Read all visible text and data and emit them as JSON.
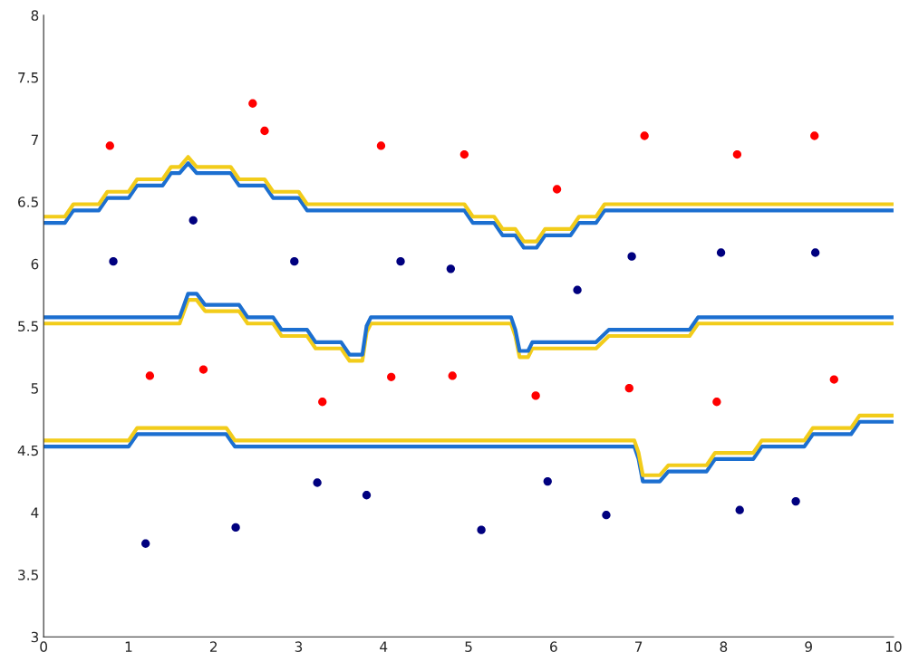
{
  "chart_data": {
    "type": "line",
    "xlim": [
      0,
      10
    ],
    "ylim": [
      3,
      8
    ],
    "xticks": [
      0,
      1,
      2,
      3,
      4,
      5,
      6,
      7,
      8,
      9,
      10
    ],
    "yticks": [
      3,
      3.5,
      4,
      4.5,
      5,
      5.5,
      6,
      6.5,
      7,
      7.5,
      8
    ],
    "grid": false,
    "series": [
      {
        "color": "#1c6fd0",
        "x": [
          0,
          0.25,
          0.35,
          0.65,
          0.75,
          1.0,
          1.1,
          1.4,
          1.5,
          1.6,
          1.7,
          1.8,
          2.2,
          2.3,
          2.6,
          2.7,
          3.0,
          3.1,
          4.95,
          5.05,
          5.3,
          5.4,
          5.55,
          5.65,
          5.8,
          5.9,
          6.2,
          6.3,
          6.5,
          6.6,
          10
        ],
        "values": [
          6.33,
          6.33,
          6.43,
          6.43,
          6.53,
          6.53,
          6.63,
          6.63,
          6.73,
          6.73,
          6.81,
          6.73,
          6.73,
          6.63,
          6.63,
          6.53,
          6.53,
          6.43,
          6.43,
          6.33,
          6.33,
          6.23,
          6.23,
          6.13,
          6.13,
          6.23,
          6.23,
          6.33,
          6.33,
          6.43,
          6.43
        ]
      },
      {
        "color": "#f2cc1a",
        "x": [
          0,
          0.25,
          0.35,
          0.65,
          0.75,
          1.0,
          1.1,
          1.4,
          1.5,
          1.6,
          1.7,
          1.8,
          2.2,
          2.3,
          2.6,
          2.7,
          3.0,
          3.1,
          4.95,
          5.05,
          5.3,
          5.4,
          5.55,
          5.65,
          5.8,
          5.9,
          6.2,
          6.3,
          6.5,
          6.6,
          10
        ],
        "values": [
          6.38,
          6.38,
          6.48,
          6.48,
          6.58,
          6.58,
          6.68,
          6.68,
          6.78,
          6.78,
          6.86,
          6.78,
          6.78,
          6.68,
          6.68,
          6.58,
          6.58,
          6.48,
          6.48,
          6.38,
          6.38,
          6.28,
          6.28,
          6.18,
          6.18,
          6.28,
          6.28,
          6.38,
          6.38,
          6.48,
          6.48
        ]
      },
      {
        "color": "#f2cc1a",
        "x": [
          0,
          1.6,
          1.7,
          1.8,
          1.9,
          2.3,
          2.4,
          2.7,
          2.8,
          3.1,
          3.2,
          3.5,
          3.6,
          3.75,
          3.8,
          3.85,
          5.5,
          5.55,
          5.6,
          5.7,
          5.75,
          6.5,
          6.65,
          7.6,
          7.7,
          10
        ],
        "values": [
          5.52,
          5.52,
          5.71,
          5.71,
          5.62,
          5.62,
          5.52,
          5.52,
          5.42,
          5.42,
          5.32,
          5.32,
          5.22,
          5.22,
          5.45,
          5.52,
          5.52,
          5.42,
          5.25,
          5.25,
          5.32,
          5.32,
          5.42,
          5.42,
          5.52,
          5.52
        ]
      },
      {
        "color": "#1c6fd0",
        "x": [
          0,
          1.6,
          1.7,
          1.8,
          1.9,
          2.3,
          2.4,
          2.7,
          2.8,
          3.1,
          3.2,
          3.5,
          3.6,
          3.75,
          3.8,
          3.85,
          5.5,
          5.55,
          5.6,
          5.7,
          5.75,
          6.5,
          6.65,
          7.6,
          7.7,
          10
        ],
        "values": [
          5.57,
          5.57,
          5.76,
          5.76,
          5.67,
          5.67,
          5.57,
          5.57,
          5.47,
          5.47,
          5.37,
          5.37,
          5.27,
          5.27,
          5.5,
          5.57,
          5.57,
          5.47,
          5.3,
          5.3,
          5.37,
          5.37,
          5.47,
          5.47,
          5.57,
          5.57
        ]
      },
      {
        "color": "#1c6fd0",
        "x": [
          0,
          1.0,
          1.1,
          2.15,
          2.25,
          6.95,
          7.0,
          7.05,
          7.25,
          7.35,
          7.8,
          7.9,
          8.35,
          8.45,
          8.95,
          9.05,
          9.5,
          9.6,
          10
        ],
        "values": [
          4.53,
          4.53,
          4.63,
          4.63,
          4.53,
          4.53,
          4.43,
          4.25,
          4.25,
          4.33,
          4.33,
          4.43,
          4.43,
          4.53,
          4.53,
          4.63,
          4.63,
          4.73,
          4.73
        ]
      },
      {
        "color": "#f2cc1a",
        "x": [
          0,
          1.0,
          1.1,
          2.15,
          2.25,
          6.95,
          7.0,
          7.05,
          7.25,
          7.35,
          7.8,
          7.9,
          8.35,
          8.45,
          8.95,
          9.05,
          9.5,
          9.6,
          10
        ],
        "values": [
          4.58,
          4.58,
          4.68,
          4.68,
          4.58,
          4.58,
          4.48,
          4.3,
          4.3,
          4.38,
          4.38,
          4.48,
          4.48,
          4.58,
          4.58,
          4.68,
          4.68,
          4.78,
          4.78
        ]
      },
      {
        "type": "scatter",
        "color": "#ff0000",
        "marker": "circle",
        "x": [
          0.78,
          1.25,
          1.88,
          2.46,
          2.6,
          3.28,
          3.97,
          4.09,
          4.81,
          4.95,
          5.79,
          6.04,
          6.89,
          7.07,
          7.92,
          8.16,
          9.07,
          9.3
        ],
        "values": [
          6.95,
          5.1,
          5.15,
          7.29,
          7.07,
          4.89,
          6.95,
          5.09,
          5.1,
          6.88,
          4.94,
          6.6,
          5.0,
          7.03,
          4.89,
          6.88,
          7.03,
          5.07
        ]
      },
      {
        "type": "scatter",
        "color": "#00007f",
        "marker": "circle",
        "x": [
          0.82,
          1.2,
          1.76,
          2.26,
          2.95,
          3.22,
          3.8,
          4.2,
          4.79,
          5.15,
          5.93,
          6.28,
          6.62,
          6.92,
          7.97,
          8.19,
          8.85,
          9.08
        ],
        "values": [
          6.02,
          3.75,
          6.35,
          3.88,
          6.02,
          4.24,
          4.14,
          6.02,
          5.96,
          3.86,
          4.25,
          5.79,
          3.98,
          6.06,
          6.09,
          4.02,
          4.09,
          6.09
        ]
      }
    ]
  }
}
